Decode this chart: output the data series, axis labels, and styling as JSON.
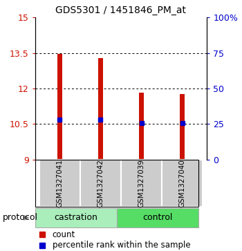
{
  "title": "GDS5301 / 1451846_PM_at",
  "samples": [
    "GSM1327041",
    "GSM1327042",
    "GSM1327039",
    "GSM1327040"
  ],
  "groups": [
    "castration",
    "castration",
    "control",
    "control"
  ],
  "bar_bottom": 9,
  "bar_tops": [
    13.47,
    13.28,
    11.82,
    11.76
  ],
  "percentile_values": [
    10.68,
    10.67,
    10.55,
    10.53
  ],
  "ylim_left": [
    9,
    15
  ],
  "ylim_right": [
    0,
    100
  ],
  "yticks_left": [
    9,
    10.5,
    12,
    13.5,
    15
  ],
  "yticks_right": [
    0,
    25,
    50,
    75,
    100
  ],
  "ytick_labels_left": [
    "9",
    "10.5",
    "12",
    "13.5",
    "15"
  ],
  "ytick_labels_right": [
    "0",
    "25",
    "50",
    "75",
    "100%"
  ],
  "grid_values": [
    10.5,
    12,
    13.5
  ],
  "bar_color": "#cc1100",
  "percentile_color": "#0000cc",
  "label_box_color": "#cccccc",
  "bar_width": 0.12,
  "legend_count_color": "#cc1100",
  "legend_percentile_color": "#0000cc",
  "protocol_label": "protocol",
  "castration_color": "#aaeebb",
  "control_color": "#55dd66",
  "group_border_color": "#888888"
}
